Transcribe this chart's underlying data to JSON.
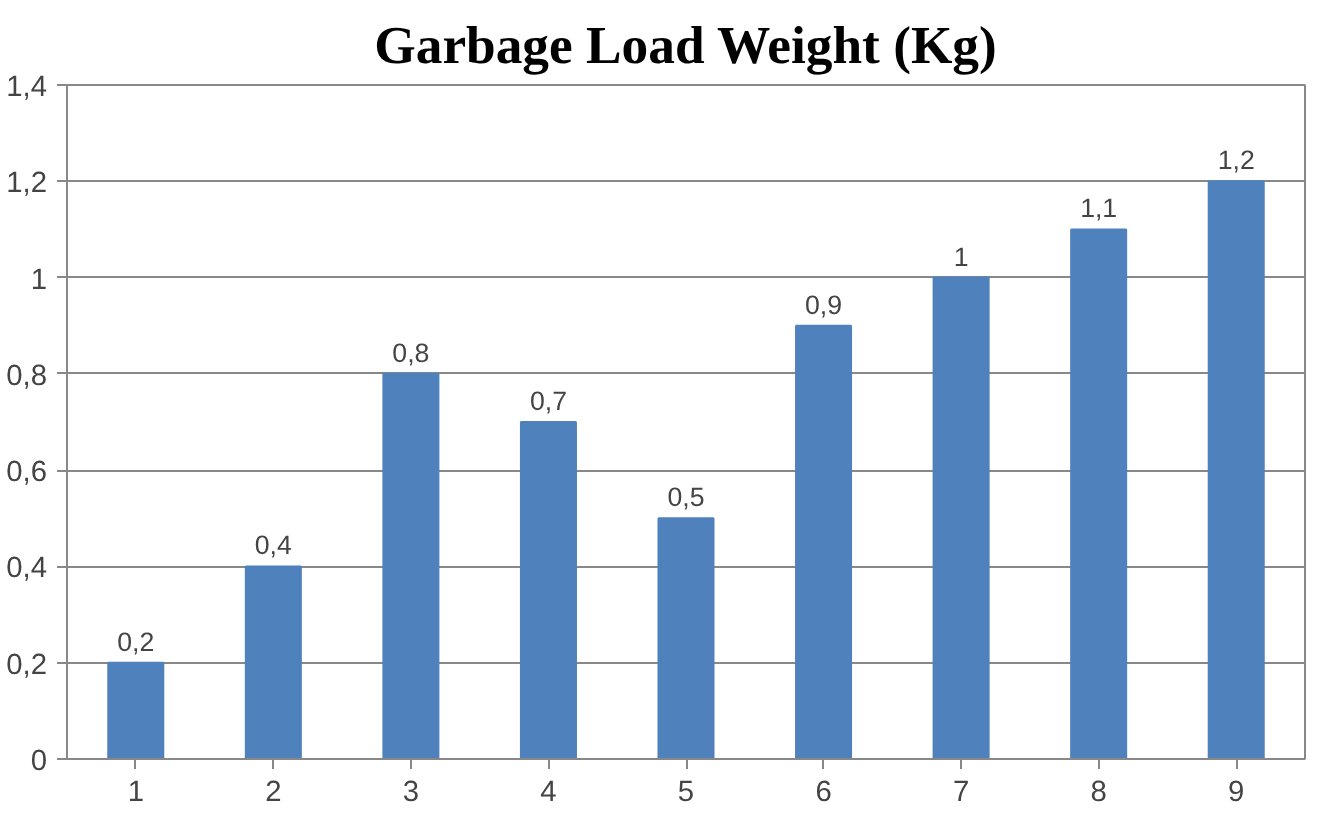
{
  "chart_data": {
    "type": "bar",
    "title": "Garbage Load Weight (Kg)",
    "categories": [
      "1",
      "2",
      "3",
      "4",
      "5",
      "6",
      "7",
      "8",
      "9"
    ],
    "values": [
      0.2,
      0.4,
      0.8,
      0.7,
      0.5,
      0.9,
      1,
      1.1,
      1.2
    ],
    "value_labels": [
      "0,2",
      "0,4",
      "0,8",
      "0,7",
      "0,5",
      "0,9",
      "1",
      "1,1",
      "1,2"
    ],
    "color": "#4f81bd",
    "ylim": [
      0,
      1.4
    ],
    "yticks": [
      0,
      {
        "value": 0.2,
        "label": "0,2"
      },
      {
        "value": 0.4,
        "label": "0,4"
      },
      {
        "value": 0.6,
        "label": "0,6"
      },
      {
        "value": 0.8,
        "label": "0,8"
      },
      1,
      {
        "value": 1.2,
        "label": "1,2"
      },
      {
        "value": 1.4,
        "label": "1,4"
      }
    ],
    "grid": "y"
  }
}
